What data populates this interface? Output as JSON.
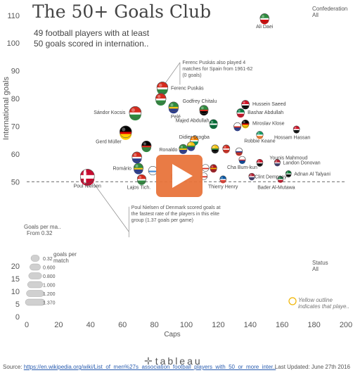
{
  "header": {
    "title": "The 50+ Goals Club",
    "subtitle_line1": "49 football players with at least",
    "subtitle_line2": "50 goals scored in internation.."
  },
  "filters": {
    "confederation_label": "Confederation",
    "confederation_value": "All",
    "goals_per_match_label": "Goals per ma..",
    "goals_per_match_value": "From 0.32",
    "status_label": "Status",
    "status_value": "All"
  },
  "size_legend": {
    "title_line1": "goals per",
    "title_line2": "match",
    "items": [
      "0.32",
      "0.600",
      "0.800",
      "1.000",
      "1.200",
      "1.370"
    ]
  },
  "yellow_note": {
    "line1": "Yellow outline",
    "line2": "indicates that playe.."
  },
  "footer": {
    "source_label": "Source:",
    "source_link": "https://en.wikipedia.org/wiki/List_of_men%27s_association_football_players_with_50_or_more_inter..",
    "updated": "Last Updated: June 27th 2016",
    "logo_text": "tableau"
  },
  "colors": {
    "flag_red": "#d52b1e",
    "flag_green": "#2e8b3e",
    "flag_yellow": "#f5c518",
    "play_orange": "#e8743b"
  },
  "chart_data": [
    {
      "type": "scatter",
      "title": "",
      "xlabel": "Caps",
      "ylabel": "International goals",
      "xlim": [
        0,
        200
      ],
      "ylim": [
        45,
        113
      ],
      "xticks": [
        0,
        20,
        40,
        60,
        80,
        100,
        120,
        140,
        160,
        180,
        200
      ],
      "yticks": [
        50,
        60,
        70,
        80,
        90,
        100,
        110
      ],
      "reference_line_y": 50,
      "annotations": [
        "Ferenc Puskás also played 4 matches for Spain from 1961-62 (0 goals)",
        "Poul Nielsen of Denmark scored goals at the fastest rate of the players in this elite group (1.37 goals per game)"
      ],
      "points": [
        {
          "name": "Ali Daei",
          "x": 149,
          "y": 109,
          "gpm": 0.73,
          "c1": "#2e8b3e",
          "c2": "#ffffff",
          "c3": "#da0000",
          "label": true
        },
        {
          "name": "Ferenc Puskás",
          "x": 85,
          "y": 84,
          "gpm": 0.99,
          "c1": "#d52b1e",
          "c2": "#ffffff",
          "c3": "#2e8b3e",
          "label": true
        },
        {
          "name": "",
          "x": 84,
          "y": 80,
          "gpm": 0.91,
          "c1": "#d52b1e",
          "c2": "#ffffff",
          "c3": "#2e8b3e",
          "label": false
        },
        {
          "name": "Pelé",
          "x": 92,
          "y": 77,
          "gpm": 0.84,
          "c1": "#2e8b3e",
          "c2": "#f5c518",
          "c3": "#2a3c8f",
          "label": true
        },
        {
          "name": "Sándor Kocsis",
          "x": 68,
          "y": 75,
          "gpm": 1.1,
          "c1": "#d52b1e",
          "c2": "#ffffff",
          "c3": "#2e8b3e",
          "label": true
        },
        {
          "name": "Godfrey Chitalu",
          "x": 111,
          "y": 76,
          "gpm": 0.69,
          "c1": "#2e8b3e",
          "c2": "#d52b1e",
          "c3": "#000000",
          "label": true
        },
        {
          "name": "Hussein Saeed",
          "x": 137,
          "y": 78,
          "gpm": 0.57,
          "c1": "#ce1126",
          "c2": "#ffffff",
          "c3": "#000000",
          "label": true
        },
        {
          "name": "Bashar Abdullah",
          "x": 134,
          "y": 75,
          "gpm": 0.56,
          "c1": "#007a3d",
          "c2": "#ffffff",
          "c3": "#ce1126",
          "label": true
        },
        {
          "name": "Majed Abdullah",
          "x": 117,
          "y": 71,
          "gpm": 0.61,
          "c1": "#006c35",
          "c2": "#ffffff",
          "c3": "#006c35",
          "label": true
        },
        {
          "name": "Miroslav Klose",
          "x": 137,
          "y": 71,
          "gpm": 0.52,
          "c1": "#000000",
          "c2": "#dd0000",
          "c3": "#ffce00",
          "label": true
        },
        {
          "name": "",
          "x": 132,
          "y": 70,
          "gpm": 0.52,
          "c1": "#ffffff",
          "c2": "#d52b1e",
          "c3": "#2a3c8f",
          "label": false
        },
        {
          "name": "Didier Drogba",
          "x": 105,
          "y": 65,
          "gpm": 0.62,
          "c1": "#f77f00",
          "c2": "#ffffff",
          "c3": "#009e60",
          "label": true
        },
        {
          "name": "Robbie Keane",
          "x": 146,
          "y": 67,
          "gpm": 0.46,
          "c1": "#169b62",
          "c2": "#ffffff",
          "c3": "#ff883e",
          "label": true
        },
        {
          "name": "Hossam Hassan",
          "x": 169,
          "y": 69,
          "gpm": 0.41,
          "c1": "#ce1126",
          "c2": "#ffffff",
          "c3": "#000000",
          "label": true
        },
        {
          "name": "Gerd Müller",
          "x": 62,
          "y": 68,
          "gpm": 1.1,
          "c1": "#000000",
          "c2": "#dd0000",
          "c3": "#ffce00",
          "label": true
        },
        {
          "name": "",
          "x": 75,
          "y": 63,
          "gpm": 0.8,
          "c1": "#000000",
          "c2": "#d52b1e",
          "c3": "#2e8b3e",
          "label": false
        },
        {
          "name": "Ronaldo",
          "x": 98,
          "y": 62,
          "gpm": 0.63,
          "c1": "#2e8b3e",
          "c2": "#f5c518",
          "c3": "#2a3c8f",
          "label": true
        },
        {
          "name": "",
          "x": 103,
          "y": 63,
          "gpm": 0.6,
          "c1": "#f5c518",
          "c2": "#2e8b3e",
          "c3": "#2a3c8f",
          "label": false
        },
        {
          "name": "",
          "x": 118,
          "y": 62,
          "gpm": 0.53,
          "c1": "#f5c518",
          "c2": "#2e8b3e",
          "c3": "#000000",
          "label": false
        },
        {
          "name": "",
          "x": 125,
          "y": 62,
          "gpm": 0.5,
          "c1": "#d52b1e",
          "c2": "#ffffff",
          "c3": "#d52b1e",
          "label": false
        },
        {
          "name": "",
          "x": 133,
          "y": 61,
          "gpm": 0.47,
          "c1": "#ffffff",
          "c2": "#2a3c8f",
          "c3": "#d52b1e",
          "label": false
        },
        {
          "name": "Romário",
          "x": 70,
          "y": 55,
          "gpm": 0.79,
          "c1": "#2e8b3e",
          "c2": "#f5c518",
          "c3": "#2a3c8f",
          "label": true
        },
        {
          "name": "",
          "x": 69,
          "y": 59,
          "gpm": 0.82,
          "c1": "#d52b1e",
          "c2": "#ffffff",
          "c3": "#2a3c8f",
          "label": false
        },
        {
          "name": "Lajos Tich.",
          "x": 72,
          "y": 51,
          "gpm": 0.71,
          "c1": "#d52b1e",
          "c2": "#ffffff",
          "c3": "#2e8b3e",
          "label": true
        },
        {
          "name": "",
          "x": 79,
          "y": 54,
          "gpm": 0.7,
          "c1": "#ffffff",
          "c2": "#4a90d9",
          "c3": "#ffffff",
          "label": false
        },
        {
          "name": "Cha Bum-kun",
          "x": 135,
          "y": 58,
          "gpm": 0.43,
          "c1": "#ffffff",
          "c2": "#cd2e3a",
          "c3": "#0047a0",
          "label": true
        },
        {
          "name": "Younis Mahmoud",
          "x": 146,
          "y": 57,
          "gpm": 0.4,
          "c1": "#ce1126",
          "c2": "#ffffff",
          "c3": "#000000",
          "label": true
        },
        {
          "name": "Landon Donovan",
          "x": 157,
          "y": 57,
          "gpm": 0.36,
          "c1": "#b22234",
          "c2": "#ffffff",
          "c3": "#3c3b6e",
          "label": true
        },
        {
          "name": "Clint Dempsey",
          "x": 141,
          "y": 52,
          "gpm": 0.37,
          "c1": "#b22234",
          "c2": "#ffffff",
          "c3": "#3c3b6e",
          "label": true
        },
        {
          "name": "Adnan Al Talyani",
          "x": 164,
          "y": 53,
          "gpm": 0.32,
          "c1": "#00732f",
          "c2": "#ffffff",
          "c3": "#000000",
          "label": true
        },
        {
          "name": "Bader Al-Mutawa",
          "x": 159,
          "y": 51,
          "gpm": 0.32,
          "c1": "#007a3d",
          "c2": "#ffffff",
          "c3": "#ce1126",
          "label": true
        },
        {
          "name": "",
          "x": 112,
          "y": 55,
          "gpm": 0.49,
          "c1": "#ffffff",
          "c2": "#d52b1e",
          "c3": "#ffffff",
          "label": false
        },
        {
          "name": "",
          "x": 117,
          "y": 55,
          "gpm": 0.47,
          "c1": "#aa151b",
          "c2": "#f1bf00",
          "c3": "#aa151b",
          "label": false
        },
        {
          "name": "",
          "x": 111,
          "y": 52,
          "gpm": 0.48,
          "c1": "#ffffff",
          "c2": "#d52b1e",
          "c3": "#ffffff",
          "label": false
        },
        {
          "name": "Thierry Henry",
          "x": 123,
          "y": 51,
          "gpm": 0.41,
          "c1": "#0055a4",
          "c2": "#ffffff",
          "c3": "#ef4135",
          "label": true
        },
        {
          "name": "",
          "x": 93,
          "y": 52,
          "gpm": 0.55,
          "c1": "#d52b1e",
          "c2": "#ffffff",
          "c3": "#2a3c8f",
          "label": false
        },
        {
          "name": "Poul Nielsen",
          "x": 38,
          "y": 52,
          "gpm": 1.37,
          "c1": "#c60c30",
          "c2": "#ffffff",
          "c3": "#c60c30",
          "label": true,
          "cross": true
        }
      ]
    },
    {
      "type": "scatter",
      "title": "",
      "xlabel": "Caps",
      "ylabel": "",
      "xlim": [
        0,
        200
      ],
      "ylim": [
        0,
        25
      ],
      "xticks": [
        0,
        20,
        40,
        60,
        80,
        100,
        120,
        140,
        160,
        180,
        200
      ],
      "yticks": [
        0,
        5,
        10,
        15,
        20
      ],
      "points": []
    }
  ]
}
